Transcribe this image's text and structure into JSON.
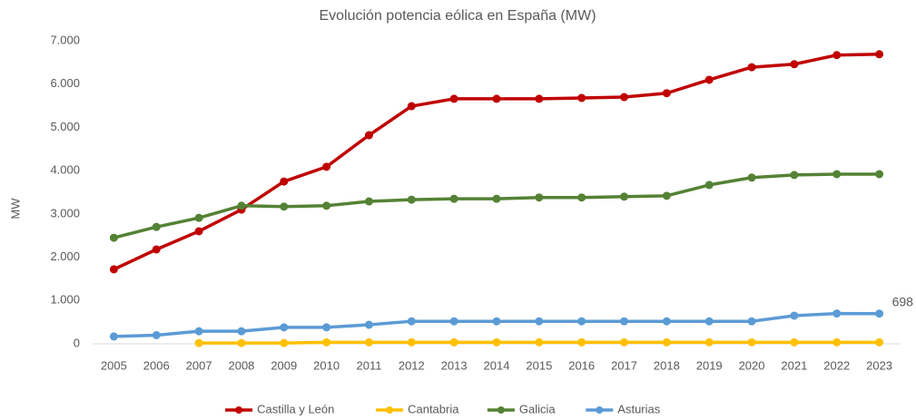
{
  "chart_data": {
    "type": "line",
    "title": "Evolución potencia eólica en España (MW)",
    "y_label": "MW",
    "categories": [
      "2005",
      "2006",
      "2007",
      "2008",
      "2009",
      "2010",
      "2011",
      "2012",
      "2013",
      "2014",
      "2015",
      "2016",
      "2017",
      "2018",
      "2019",
      "2020",
      "2021",
      "2022",
      "2023"
    ],
    "series": [
      {
        "name": "Castilla y León",
        "color": "#c00000",
        "values": [
          1720,
          2180,
          2600,
          3100,
          3750,
          4090,
          4820,
          5490,
          5660,
          5660,
          5660,
          5680,
          5700,
          5790,
          6100,
          6390,
          6460,
          6670,
          6690
        ]
      },
      {
        "name": "Cantabria",
        "color": "#ffc000",
        "values": [
          null,
          null,
          18,
          18,
          18,
          35,
          35,
          35,
          35,
          35,
          35,
          35,
          35,
          35,
          35,
          35,
          35,
          35,
          35
        ]
      },
      {
        "name": "Galicia",
        "color": "#548235",
        "values": [
          2450,
          2700,
          2910,
          3190,
          3170,
          3190,
          3290,
          3330,
          3350,
          3350,
          3380,
          3380,
          3400,
          3420,
          3670,
          3840,
          3900,
          3920,
          3920
        ]
      },
      {
        "name": "Asturias",
        "color": "#5b9bd5",
        "label_last": true,
        "values": [
          170,
          200,
          290,
          290,
          380,
          380,
          440,
          520,
          520,
          520,
          520,
          520,
          520,
          520,
          520,
          520,
          650,
          700,
          698
        ]
      }
    ],
    "ylim": [
      0,
      7000
    ],
    "yticks": [
      0,
      {
        "value": 1000,
        "label": "1.000"
      },
      {
        "value": 2000,
        "label": "2.000"
      },
      {
        "value": 3000,
        "label": "3.000"
      },
      {
        "value": 4000,
        "label": "4.000"
      },
      {
        "value": 5000,
        "label": "5.000"
      },
      {
        "value": 6000,
        "label": "6.000"
      },
      {
        "value": 7000,
        "label": "7.000"
      }
    ],
    "grid": false,
    "legend": "bottom"
  }
}
